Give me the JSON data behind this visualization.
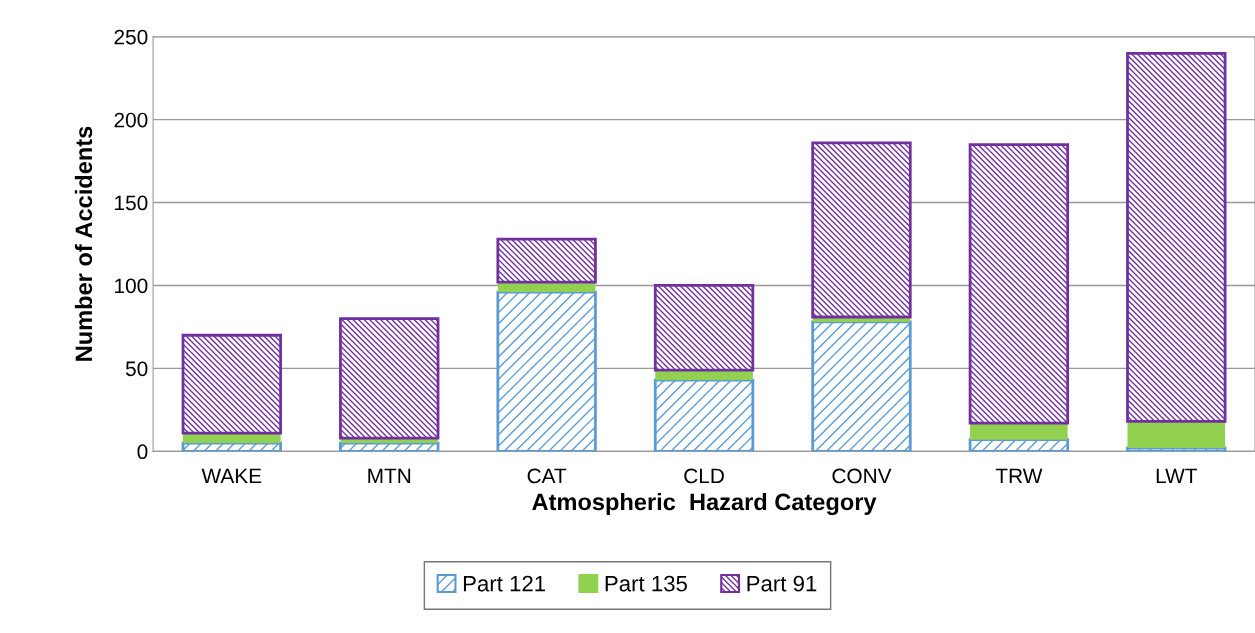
{
  "chart_data": {
    "type": "bar",
    "stacked": true,
    "xlabel": "Atmospheric  Hazard Category",
    "ylabel": "Number of Accidents",
    "categories": [
      "WAKE",
      "MTN",
      "CAT",
      "CLD",
      "CONV",
      "TRW",
      "LWT"
    ],
    "series": [
      {
        "name": "Part 121",
        "color": "#5b9bd5",
        "values": [
          5,
          5,
          96,
          43,
          78,
          7,
          2
        ]
      },
      {
        "name": "Part 135",
        "color": "#92d050",
        "values": [
          6,
          3,
          6,
          6,
          3,
          10,
          16
        ]
      },
      {
        "name": "Part 91",
        "color": "#7030a0",
        "values": [
          59,
          72,
          26,
          51,
          105,
          168,
          222
        ]
      }
    ],
    "ylim": [
      0,
      250
    ],
    "yticks": [
      0,
      50,
      100,
      150,
      200,
      250
    ],
    "grid": "y",
    "legend": "bottom"
  }
}
